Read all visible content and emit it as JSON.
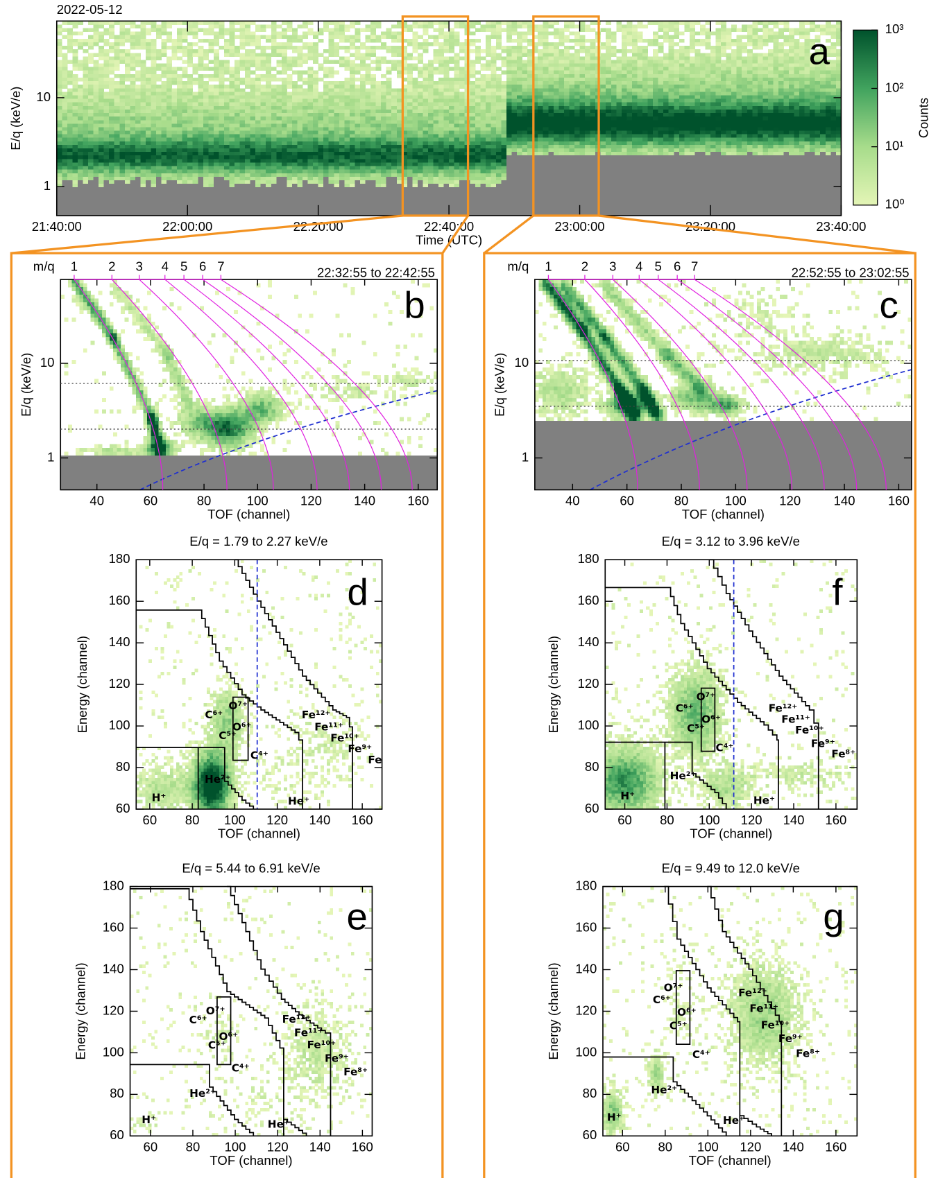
{
  "chart_data": [
    {
      "type": "heatmap",
      "title": "2022-05-12",
      "label": "a",
      "xlabel": "Time (UTC)",
      "ylabel": "E/q (keV/e)",
      "xlim": [
        "21:40:00",
        "23:40:00"
      ],
      "xticks": [
        "21:40:00",
        "22:00:00",
        "22:20:00",
        "22:40:00",
        "23:00:00",
        "23:20:00",
        "23:40:00"
      ],
      "ylim": [
        0.47,
        73
      ],
      "yticks": [
        1,
        10
      ],
      "log_y": true,
      "colorbar": {
        "label": "Counts",
        "lim": [
          1,
          1000
        ],
        "log": true,
        "colors": [
          "#e4f5b6",
          "#a7dc8b",
          "#41a35e",
          "#00522c"
        ],
        "ticks": [
          {
            "value": 1,
            "label": "10⁰"
          },
          {
            "value": 10,
            "label": "10¹"
          },
          {
            "value": 100,
            "label": "10²"
          },
          {
            "value": 1000,
            "label": "10³"
          }
        ]
      }
    },
    {
      "type": "heatmap",
      "label": "b",
      "subtitle": "22:32:55 to 22:42:55",
      "time_range": [
        "22:32:55",
        "22:42:55"
      ],
      "xlabel": "TOF (channel)",
      "ylabel": "E/q (keV/e)",
      "xlim": [
        26.4,
        167.1
      ],
      "xticks": [
        40,
        60,
        80,
        100,
        120,
        140,
        160
      ],
      "ylim": [
        0.46,
        77
      ],
      "yticks": [
        1,
        10
      ],
      "log_y": true,
      "mq_label": "m/q",
      "mq_ticks": [
        {
          "value": 31.5,
          "label": "1"
        },
        {
          "value": 45.6,
          "label": "2"
        },
        {
          "value": 55.8,
          "label": "3"
        },
        {
          "value": 65.4,
          "label": "4"
        },
        {
          "value": 72.5,
          "label": "5"
        },
        {
          "value": 79.5,
          "label": "6"
        },
        {
          "value": 86.3,
          "label": "7"
        }
      ]
    },
    {
      "type": "heatmap",
      "label": "c",
      "subtitle": "22:52:55 to 23:02:55",
      "time_range": [
        "22:52:55",
        "23:02:55"
      ],
      "xlabel": "TOF (channel)",
      "ylabel": "E/q (keV/e)",
      "xlim": [
        26.1,
        164.7
      ],
      "xticks": [
        40,
        60,
        80,
        100,
        120,
        140,
        160
      ],
      "ylim": [
        0.46,
        77
      ],
      "yticks": [
        1,
        10
      ],
      "log_y": true,
      "mq_label": "m/q",
      "mq_ticks": [
        {
          "value": 31.1,
          "label": "1"
        },
        {
          "value": 44.5,
          "label": "2"
        },
        {
          "value": 54.8,
          "label": "3"
        },
        {
          "value": 64.5,
          "label": "4"
        },
        {
          "value": 71.5,
          "label": "5"
        },
        {
          "value": 78.5,
          "label": "6"
        },
        {
          "value": 84.9,
          "label": "7"
        }
      ]
    },
    {
      "type": "heatmap",
      "label": "d",
      "title": "E/q = 1.79 to 2.27 keV/e",
      "e_range": [
        1.79,
        2.27
      ],
      "xlabel": "TOF (channel)",
      "ylabel": "Energy (channel)",
      "xlim": [
        53.6,
        169.3
      ],
      "xticks": [
        60,
        80,
        100,
        120,
        140,
        160
      ],
      "ylim": [
        60,
        180
      ],
      "yticks": [
        60,
        80,
        100,
        120,
        140,
        160,
        180
      ],
      "annotation_color": "#e31ce3",
      "annotations": [
        {
          "text": "C⁶⁺",
          "x": 90.2,
          "y": 105.2
        },
        {
          "text": "O⁷⁺",
          "x": 101.6,
          "y": 109.5
        },
        {
          "text": "C⁵⁺",
          "x": 96.7,
          "y": 95.1
        },
        {
          "text": "O⁶⁺",
          "x": 103.4,
          "y": 99.4
        },
        {
          "text": "C⁴⁺",
          "x": 111.6,
          "y": 85.7
        },
        {
          "text": "He²⁺",
          "x": 92,
          "y": 74.1
        },
        {
          "text": "H⁺",
          "x": 64.3,
          "y": 65.4
        },
        {
          "text": "He⁺",
          "x": 130.1,
          "y": 63.6
        },
        {
          "text": "Fe¹²⁺",
          "x": 138.3,
          "y": 105.2
        },
        {
          "text": "Fe¹¹⁺",
          "x": 144.3,
          "y": 99.4
        },
        {
          "text": "Fe¹⁰⁺",
          "x": 151.8,
          "y": 94
        },
        {
          "text": "Fe⁹⁺",
          "x": 158.9,
          "y": 88.9
        },
        {
          "text": "Fe",
          "x": 166,
          "y": 83.5
        }
      ]
    },
    {
      "type": "heatmap",
      "label": "e",
      "title": "E/q = 5.44 to 6.91 keV/e",
      "e_range": [
        5.44,
        6.91
      ],
      "xlabel": "TOF (channel)",
      "ylabel": "Energy (channel)",
      "xlim": [
        50.4,
        164.6
      ],
      "xticks": [
        60,
        80,
        100,
        120,
        140,
        160
      ],
      "ylim": [
        60,
        180
      ],
      "yticks": [
        60,
        80,
        100,
        120,
        140,
        160,
        180
      ],
      "annotation_color": "#e31ce3",
      "annotations": [
        {
          "text": "C⁶⁺",
          "x": 82.5,
          "y": 115.7
        },
        {
          "text": "O⁷⁺",
          "x": 90.7,
          "y": 120
        },
        {
          "text": "C⁵⁺",
          "x": 91.4,
          "y": 103.4
        },
        {
          "text": "O⁶⁺",
          "x": 96.8,
          "y": 107.7
        },
        {
          "text": "C⁴⁺",
          "x": 102.5,
          "y": 92.5
        },
        {
          "text": "He²⁺",
          "x": 84.6,
          "y": 80.2
        },
        {
          "text": "H⁺",
          "x": 59.3,
          "y": 67.6
        },
        {
          "text": "He⁺",
          "x": 120.4,
          "y": 65.4
        },
        {
          "text": "Fe¹²⁺",
          "x": 128.9,
          "y": 116
        },
        {
          "text": "Fe¹¹⁺",
          "x": 134.6,
          "y": 109.5
        },
        {
          "text": "Fe¹⁰⁺",
          "x": 140.7,
          "y": 103.7
        },
        {
          "text": "Fe⁹⁺",
          "x": 147.9,
          "y": 97.2
        },
        {
          "text": "Fe⁸⁺",
          "x": 156.8,
          "y": 90.7
        }
      ]
    },
    {
      "type": "heatmap",
      "label": "f",
      "title": "E/q = 3.12 to 3.96 keV/e",
      "e_range": [
        3.12,
        3.96
      ],
      "xlabel": "TOF (channel)",
      "ylabel": "Energy (channel)",
      "xlim": [
        50.7,
        170
      ],
      "xticks": [
        60,
        80,
        100,
        120,
        140,
        160
      ],
      "ylim": [
        60,
        180
      ],
      "yticks": [
        60,
        80,
        100,
        120,
        140,
        160,
        180
      ],
      "annotation_color": "#e31ce3",
      "annotations": [
        {
          "text": "C⁶⁺",
          "x": 88.3,
          "y": 108.4
        },
        {
          "text": "O⁷⁺",
          "x": 98.4,
          "y": 113.8
        },
        {
          "text": "C⁵⁺",
          "x": 93.7,
          "y": 98.7
        },
        {
          "text": "O⁶⁺",
          "x": 100.9,
          "y": 103
        },
        {
          "text": "C⁴⁺",
          "x": 107.3,
          "y": 89.3
        },
        {
          "text": "He²⁺",
          "x": 87.6,
          "y": 75.9
        },
        {
          "text": "H⁺",
          "x": 61.4,
          "y": 66.1
        },
        {
          "text": "He⁺",
          "x": 126,
          "y": 64
        },
        {
          "text": "Fe¹²⁺",
          "x": 134.9,
          "y": 108.4
        },
        {
          "text": "Fe¹¹⁺",
          "x": 141,
          "y": 103
        },
        {
          "text": "Fe¹⁰⁺",
          "x": 147.5,
          "y": 97.9
        },
        {
          "text": "Fe⁹⁺",
          "x": 153.9,
          "y": 91.4
        },
        {
          "text": "Fe⁸⁺",
          "x": 163.6,
          "y": 86.4
        }
      ]
    },
    {
      "type": "heatmap",
      "label": "g",
      "title": "E/q = 9.49 to 12.0 keV/e",
      "e_range": [
        9.49,
        12.0
      ],
      "xlabel": "TOF (channel)",
      "ylabel": "Energy (channel)",
      "xlim": [
        50.8,
        169.9
      ],
      "xticks": [
        60,
        80,
        100,
        120,
        140,
        160
      ],
      "ylim": [
        60,
        180
      ],
      "yticks": [
        60,
        80,
        100,
        120,
        140,
        160,
        180
      ],
      "annotation_color": "#e31ce3",
      "annotations": [
        {
          "text": "O⁷⁺",
          "x": 83.8,
          "y": 131.2
        },
        {
          "text": "C⁶⁺",
          "x": 78.4,
          "y": 125.4
        },
        {
          "text": "O⁶⁺",
          "x": 90.1,
          "y": 119.3
        },
        {
          "text": "C⁵⁺",
          "x": 86.2,
          "y": 112.8
        },
        {
          "text": "C⁴⁺",
          "x": 96.9,
          "y": 99
        },
        {
          "text": "He²⁺",
          "x": 79.5,
          "y": 82
        },
        {
          "text": "H⁺",
          "x": 56.1,
          "y": 68.7
        },
        {
          "text": "He⁺",
          "x": 112.1,
          "y": 67.2
        },
        {
          "text": "Fe¹²⁺",
          "x": 121,
          "y": 128.7
        },
        {
          "text": "Fe¹¹⁺",
          "x": 126.3,
          "y": 121.1
        },
        {
          "text": "Fe¹⁰⁺",
          "x": 131.6,
          "y": 113.1
        },
        {
          "text": "Fe⁹⁺",
          "x": 138.7,
          "y": 106.6
        },
        {
          "text": "Fe⁸⁺",
          "x": 146.9,
          "y": 99.4
        }
      ]
    }
  ]
}
